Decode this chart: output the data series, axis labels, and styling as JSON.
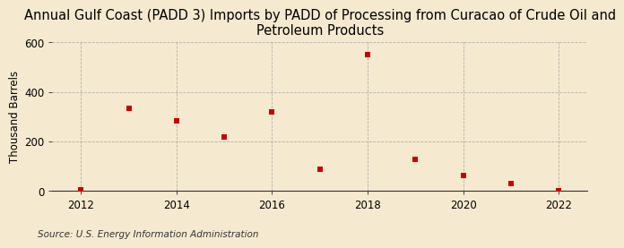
{
  "title": "Annual Gulf Coast (PADD 3) Imports by PADD of Processing from Curacao of Crude Oil and\nPetroleum Products",
  "ylabel": "Thousand Barrels",
  "source": "Source: U.S. Energy Information Administration",
  "years": [
    2012,
    2013,
    2014,
    2015,
    2016,
    2017,
    2018,
    2019,
    2020,
    2021,
    2022
  ],
  "values": [
    5,
    335,
    283,
    220,
    318,
    88,
    550,
    130,
    62,
    30,
    3
  ],
  "marker_color": "#cc0000",
  "marker_size": 5,
  "xlim": [
    2011.4,
    2022.6
  ],
  "ylim": [
    0,
    600
  ],
  "yticks": [
    0,
    200,
    400,
    600
  ],
  "xticks": [
    2012,
    2014,
    2016,
    2018,
    2020,
    2022
  ],
  "background_color": "#f5ead0",
  "grid_color": "#999999",
  "title_fontsize": 10.5,
  "label_fontsize": 8.5,
  "tick_fontsize": 8.5,
  "source_fontsize": 7.5
}
